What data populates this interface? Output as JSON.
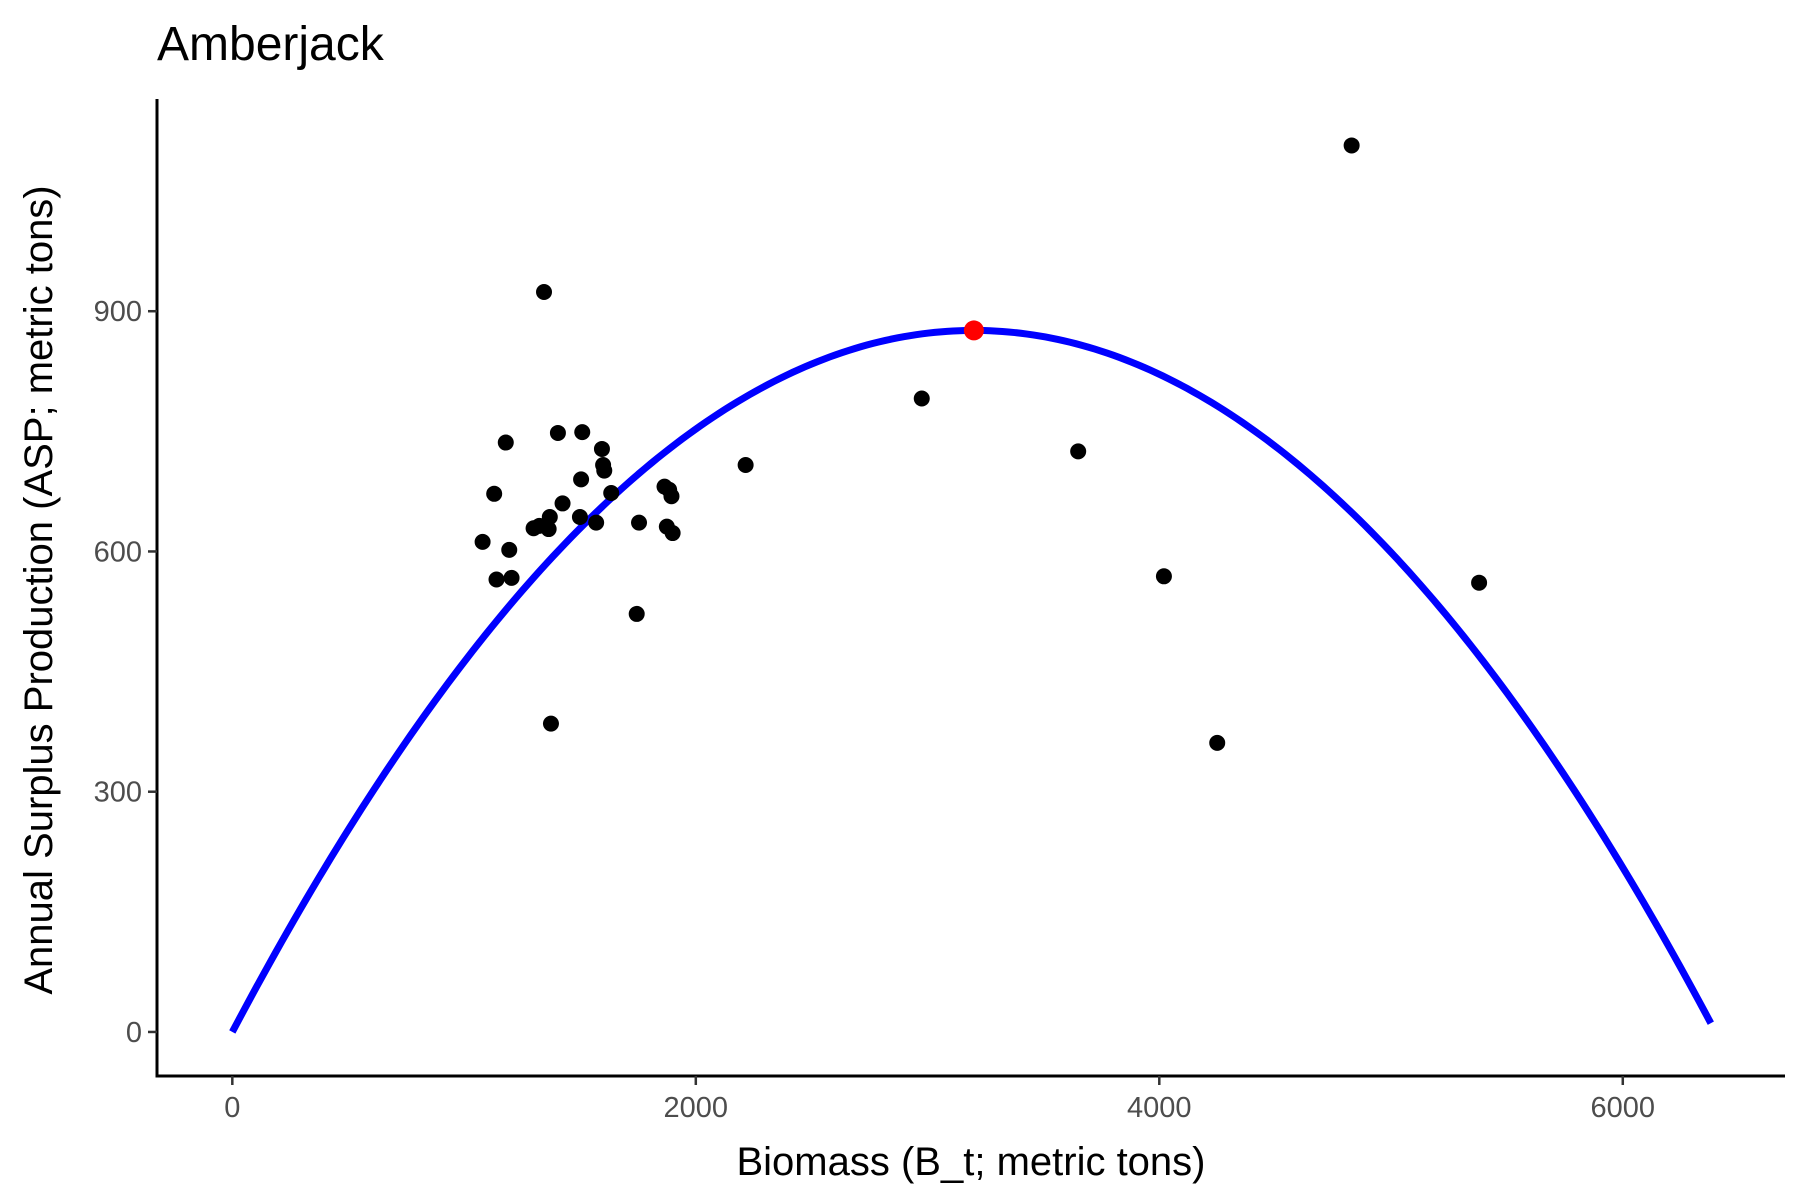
{
  "chart_data": {
    "type": "scatter",
    "title": "Amberjack",
    "xlabel": "Biomass (B_t; metric tons)",
    "ylabel": "Annual Surplus Production (ASP; metric tons)",
    "xlim": [
      -325,
      6700
    ],
    "ylim": [
      -55,
      1165
    ],
    "x_ticks": [
      0,
      2000,
      4000,
      6000
    ],
    "y_ticks": [
      0,
      300,
      600,
      900
    ],
    "grid": false,
    "legend": "none",
    "colors": {
      "points": "#000000",
      "curve": "#0000ff",
      "peak": "#ff0000",
      "axis": "#000000",
      "tick_label": "#4d4d4d"
    },
    "points": [
      {
        "x": 1080,
        "y": 612
      },
      {
        "x": 1130,
        "y": 672
      },
      {
        "x": 1140,
        "y": 565
      },
      {
        "x": 1180,
        "y": 736
      },
      {
        "x": 1195,
        "y": 602
      },
      {
        "x": 1205,
        "y": 567
      },
      {
        "x": 1300,
        "y": 629
      },
      {
        "x": 1325,
        "y": 632
      },
      {
        "x": 1345,
        "y": 924
      },
      {
        "x": 1365,
        "y": 628
      },
      {
        "x": 1370,
        "y": 643
      },
      {
        "x": 1375,
        "y": 385
      },
      {
        "x": 1405,
        "y": 748
      },
      {
        "x": 1425,
        "y": 660
      },
      {
        "x": 1500,
        "y": 643
      },
      {
        "x": 1505,
        "y": 690
      },
      {
        "x": 1510,
        "y": 749
      },
      {
        "x": 1570,
        "y": 636
      },
      {
        "x": 1595,
        "y": 728
      },
      {
        "x": 1600,
        "y": 708
      },
      {
        "x": 1605,
        "y": 701
      },
      {
        "x": 1635,
        "y": 673
      },
      {
        "x": 1745,
        "y": 522
      },
      {
        "x": 1755,
        "y": 636
      },
      {
        "x": 1865,
        "y": 681
      },
      {
        "x": 1875,
        "y": 631
      },
      {
        "x": 1885,
        "y": 677
      },
      {
        "x": 1895,
        "y": 669
      },
      {
        "x": 1900,
        "y": 623
      },
      {
        "x": 2215,
        "y": 708
      },
      {
        "x": 2975,
        "y": 791
      },
      {
        "x": 3650,
        "y": 725
      },
      {
        "x": 4020,
        "y": 569
      },
      {
        "x": 4250,
        "y": 361
      },
      {
        "x": 4830,
        "y": 1107
      },
      {
        "x": 5380,
        "y": 561
      }
    ],
    "fitted_curve": {
      "type": "parabola",
      "x_start": 0,
      "x_end": 6380,
      "peak_x": 3200,
      "peak_y": 876
    },
    "peak_point": {
      "x": 3200,
      "y": 876
    }
  }
}
